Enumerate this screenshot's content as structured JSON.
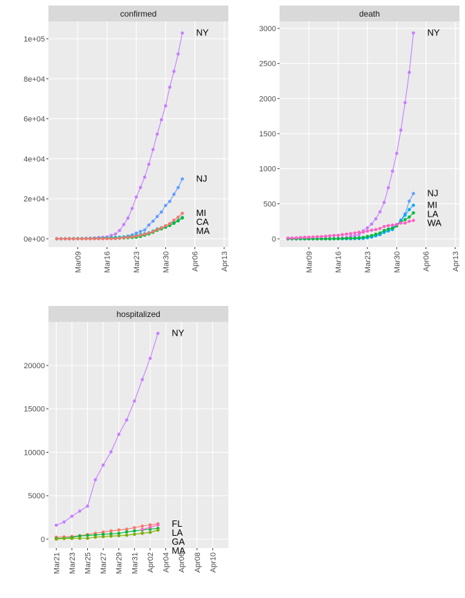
{
  "chart_data": [
    {
      "type": "line",
      "title": "confirmed",
      "x": [
        "Mar04",
        "Mar05",
        "Mar06",
        "Mar07",
        "Mar08",
        "Mar09",
        "Mar10",
        "Mar11",
        "Mar12",
        "Mar13",
        "Mar14",
        "Mar15",
        "Mar16",
        "Mar17",
        "Mar18",
        "Mar19",
        "Mar20",
        "Mar21",
        "Mar22",
        "Mar23",
        "Mar24",
        "Mar25",
        "Mar26",
        "Mar27",
        "Mar28",
        "Mar29",
        "Mar30",
        "Mar31",
        "Apr01",
        "Apr02",
        "Apr03"
      ],
      "series": [
        {
          "name": "NY",
          "color": "#C77CFF",
          "values": [
            11,
            22,
            44,
            89,
            106,
            142,
            173,
            217,
            326,
            421,
            613,
            729,
            950,
            1700,
            2382,
            4152,
            7102,
            10356,
            15168,
            20875,
            25665,
            30811,
            37258,
            44635,
            52318,
            59513,
            66497,
            75795,
            83712,
            92381,
            102863
          ]
        },
        {
          "name": "NJ",
          "color": "#619CFF",
          "values": [
            1,
            2,
            4,
            6,
            11,
            15,
            23,
            29,
            29,
            50,
            69,
            98,
            178,
            267,
            427,
            742,
            890,
            1327,
            1914,
            2844,
            3675,
            4402,
            6876,
            8825,
            11124,
            13386,
            16636,
            18696,
            22255,
            25590,
            29895
          ]
        },
        {
          "name": "CA",
          "color": "#00BFC4",
          "values": [
            53,
            53,
            60,
            69,
            88,
            114,
            133,
            157,
            177,
            221,
            282,
            340,
            426,
            557,
            698,
            751,
            952,
            1177,
            1364,
            1646,
            2108,
            2538,
            2998,
            3899,
            4914,
            5565,
            6447,
            7482,
            8155,
            9191,
            10701
          ]
        },
        {
          "name": "MA",
          "color": "#00BA38",
          "values": [
            1,
            2,
            2,
            7,
            8,
            28,
            41,
            92,
            95,
            108,
            123,
            138,
            164,
            197,
            218,
            256,
            413,
            525,
            646,
            777,
            1159,
            1838,
            2417,
            3240,
            4257,
            4955,
            5752,
            6620,
            7738,
            8966,
            10402
          ]
        },
        {
          "name": "MI",
          "color": "#F8766D",
          "values": [
            0,
            0,
            0,
            0,
            0,
            0,
            2,
            2,
            12,
            16,
            25,
            33,
            53,
            65,
            80,
            334,
            549,
            787,
            1035,
            1328,
            1791,
            2294,
            2856,
            3657,
            4650,
            5486,
            6498,
            7615,
            9334,
            10791,
            12744
          ]
        }
      ],
      "xlim": [
        "Mar02",
        "Apr14"
      ],
      "xticks": [
        "Mar09",
        "Mar16",
        "Mar23",
        "Mar30",
        "Apr06",
        "Apr13"
      ],
      "ylim": [
        -4150,
        108650
      ],
      "yticks": [
        {
          "value": 0,
          "label": "0e+00"
        },
        {
          "value": 20000,
          "label": "2e+04"
        },
        {
          "value": 40000,
          "label": "4e+04"
        },
        {
          "value": 60000,
          "label": "6e+04"
        },
        {
          "value": 80000,
          "label": "8e+04"
        },
        {
          "value": 100000,
          "label": "1e+05"
        }
      ],
      "grid": true
    },
    {
      "type": "line",
      "title": "death",
      "x": [
        "Mar04",
        "Mar05",
        "Mar06",
        "Mar07",
        "Mar08",
        "Mar09",
        "Mar10",
        "Mar11",
        "Mar12",
        "Mar13",
        "Mar14",
        "Mar15",
        "Mar16",
        "Mar17",
        "Mar18",
        "Mar19",
        "Mar20",
        "Mar21",
        "Mar22",
        "Mar23",
        "Mar24",
        "Mar25",
        "Mar26",
        "Mar27",
        "Mar28",
        "Mar29",
        "Mar30",
        "Mar31",
        "Apr01",
        "Apr02",
        "Apr03"
      ],
      "series": [
        {
          "name": "NY",
          "color": "#C77CFF",
          "values": [
            0,
            0,
            0,
            0,
            0,
            0,
            0,
            0,
            0,
            0,
            0,
            3,
            7,
            12,
            17,
            35,
            44,
            60,
            114,
            157,
            210,
            285,
            385,
            519,
            728,
            965,
            1218,
            1550,
            1941,
            2373,
            2935
          ]
        },
        {
          "name": "NJ",
          "color": "#619CFF",
          "values": [
            0,
            0,
            0,
            0,
            0,
            0,
            1,
            1,
            1,
            1,
            1,
            2,
            3,
            3,
            5,
            9,
            11,
            16,
            20,
            27,
            44,
            62,
            81,
            108,
            140,
            161,
            198,
            267,
            355,
            537,
            646
          ]
        },
        {
          "name": "MI",
          "color": "#00A9FF",
          "values": [
            0,
            0,
            0,
            0,
            0,
            0,
            0,
            0,
            0,
            0,
            0,
            0,
            0,
            0,
            0,
            1,
            3,
            3,
            5,
            15,
            24,
            43,
            60,
            92,
            111,
            132,
            184,
            259,
            337,
            417,
            479
          ]
        },
        {
          "name": "LA",
          "color": "#00BA38",
          "values": [
            0,
            0,
            0,
            0,
            0,
            0,
            0,
            0,
            0,
            0,
            0,
            1,
            1,
            4,
            6,
            8,
            10,
            14,
            20,
            35,
            46,
            65,
            83,
            119,
            137,
            151,
            185,
            239,
            273,
            310,
            370
          ]
        },
        {
          "name": "WA",
          "color": "#FF61C3",
          "values": [
            10,
            11,
            13,
            18,
            22,
            24,
            26,
            30,
            31,
            37,
            42,
            48,
            50,
            60,
            66,
            74,
            83,
            94,
            95,
            110,
            123,
            132,
            147,
            175,
            189,
            195,
            205,
            224,
            225,
            249,
            262
          ]
        }
      ],
      "xlim": [
        "Mar02",
        "Apr14"
      ],
      "xticks": [
        "Mar09",
        "Mar16",
        "Mar23",
        "Mar30",
        "Apr06",
        "Apr13"
      ],
      "ylim": [
        -118,
        3099
      ],
      "yticks": [
        0,
        500,
        1000,
        1500,
        2000,
        2500,
        3000
      ],
      "grid": true
    },
    {
      "type": "line",
      "title": "hospitalized",
      "x": [
        "Mar21",
        "Mar22",
        "Mar23",
        "Mar24",
        "Mar25",
        "Mar26",
        "Mar27",
        "Mar28",
        "Mar29",
        "Mar30",
        "Mar31",
        "Apr01",
        "Apr02",
        "Apr03"
      ],
      "series": [
        {
          "name": "NY",
          "color": "#C77CFF",
          "values": [
            1603,
            1974,
            2635,
            3234,
            3805,
            6844,
            8526,
            10054,
            12075,
            13721,
            15905,
            18368,
            20817,
            23696
          ]
        },
        {
          "name": "FL",
          "color": "#F8766D",
          "values": [
            222,
            263,
            311,
            407,
            526,
            678,
            823,
            949,
            1062,
            1157,
            1323,
            1503,
            1643,
            1765
          ]
        },
        {
          "name": "GA",
          "color": "#00BA38",
          "values": [
            79,
            102,
            194,
            361,
            438,
            473,
            566,
            617,
            666,
            833,
            952,
            1056,
            1158,
            1239
          ]
        },
        {
          "name": "MA",
          "color": "#7CAE00",
          "values": [
            0,
            71,
            79,
            94,
            103,
            219,
            288,
            350,
            399,
            453,
            562,
            682,
            781,
            1040
          ]
        },
        {
          "name": "LA",
          "color": "#FF61C3",
          "values": [
            null,
            null,
            null,
            null,
            null,
            null,
            null,
            null,
            null,
            null,
            null,
            1127,
            1355,
            1639
          ]
        }
      ],
      "xlim": [
        "Mar20",
        "Apr12"
      ],
      "xticks": [
        "Mar21",
        "Mar23",
        "Mar25",
        "Mar27",
        "Mar29",
        "Mar31",
        "Apr02",
        "Apr04",
        "Apr06",
        "Apr08",
        "Apr10"
      ],
      "ylim": [
        -1036,
        25020
      ],
      "yticks": [
        0,
        5000,
        10000,
        15000,
        20000
      ],
      "grid": true
    }
  ]
}
